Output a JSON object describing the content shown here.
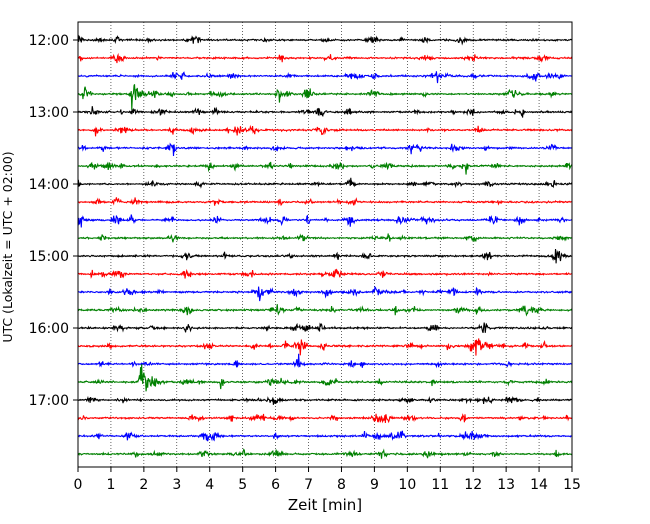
{
  "chart_data": {
    "type": "line",
    "title": "",
    "xlabel": "Zeit  [min]",
    "ylabel": "UTC (Lokalzeit = UTC + 02:00)",
    "xlim": [
      0,
      15
    ],
    "x_ticks": [
      "0",
      "1",
      "2",
      "3",
      "4",
      "5",
      "6",
      "7",
      "8",
      "9",
      "10",
      "11",
      "12",
      "13",
      "14",
      "15"
    ],
    "y_tick_labels": [
      "12:00",
      "13:00",
      "14:00",
      "15:00",
      "16:00",
      "17:00"
    ],
    "trace_start_times": [
      "12:00",
      "12:15",
      "12:30",
      "12:45",
      "13:00",
      "13:15",
      "13:30",
      "13:45",
      "14:00",
      "14:15",
      "14:30",
      "14:45",
      "15:00",
      "15:15",
      "15:30",
      "15:45",
      "16:00",
      "16:15",
      "16:30",
      "16:45",
      "17:00",
      "17:15",
      "17:30",
      "17:45"
    ],
    "trace_minutes_per_line": 15,
    "color_cycle": [
      "#000000",
      "#ff0000",
      "#0000ff",
      "#008000"
    ],
    "grid": "vertical dotted",
    "events": [
      {
        "trace": "12:45",
        "minute": 1.65,
        "amplitude": "large"
      },
      {
        "trace": "16:15",
        "minute": 12.1,
        "amplitude": "large"
      },
      {
        "trace": "16:45",
        "minute": 1.9,
        "amplitude": "large"
      },
      {
        "trace": "14:30",
        "minute": 9.7,
        "amplitude": "medium"
      },
      {
        "trace": "15:30",
        "minute": 9.0,
        "amplitude": "medium"
      }
    ]
  }
}
